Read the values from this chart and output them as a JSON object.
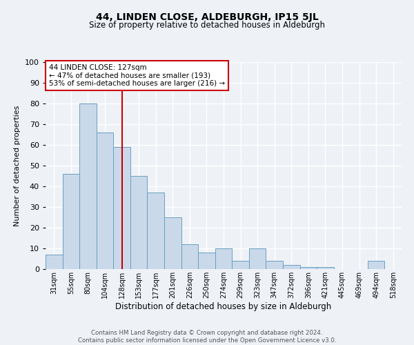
{
  "title": "44, LINDEN CLOSE, ALDEBURGH, IP15 5JL",
  "subtitle": "Size of property relative to detached houses in Aldeburgh",
  "xlabel": "Distribution of detached houses by size in Aldeburgh",
  "ylabel": "Number of detached properties",
  "footer_line1": "Contains HM Land Registry data © Crown copyright and database right 2024.",
  "footer_line2": "Contains public sector information licensed under the Open Government Licence v3.0.",
  "annotation_line1": "44 LINDEN CLOSE: 127sqm",
  "annotation_line2": "← 47% of detached houses are smaller (193)",
  "annotation_line3": "53% of semi-detached houses are larger (216) →",
  "bar_labels": [
    "31sqm",
    "55sqm",
    "80sqm",
    "104sqm",
    "128sqm",
    "153sqm",
    "177sqm",
    "201sqm",
    "226sqm",
    "250sqm",
    "274sqm",
    "299sqm",
    "323sqm",
    "347sqm",
    "372sqm",
    "396sqm",
    "421sqm",
    "445sqm",
    "469sqm",
    "494sqm",
    "518sqm"
  ],
  "bar_values": [
    7,
    46,
    80,
    66,
    59,
    45,
    37,
    25,
    12,
    8,
    10,
    4,
    10,
    4,
    2,
    1,
    1,
    0,
    0,
    4,
    0
  ],
  "bar_color": "#c9d9ea",
  "bar_edge_color": "#6a9ec0",
  "vline_x": 4,
  "vline_color": "#cc0000",
  "ylim": [
    0,
    100
  ],
  "box_color": "#cc0000",
  "bg_color": "#eef2f7",
  "grid_color": "#ffffff"
}
